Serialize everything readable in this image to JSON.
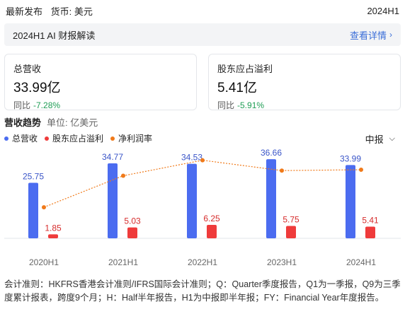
{
  "header": {
    "release": "最新发布",
    "currency": "货币: 美元",
    "period": "2024H1"
  },
  "ai_bar": {
    "title": "2024H1 AI 财报解读",
    "link": "查看详情"
  },
  "cards": [
    {
      "label": "总营收",
      "value": "33.99亿",
      "yoy_label": "同比",
      "yoy": "-7.28%"
    },
    {
      "label": "股东应占溢利",
      "value": "5.41亿",
      "yoy_label": "同比",
      "yoy": "-5.91%"
    }
  ],
  "section": {
    "title": "营收趋势",
    "unit": "单位: 亿美元"
  },
  "legend": [
    {
      "name": "总营收",
      "color": "#4b6cf0"
    },
    {
      "name": "股东应占溢利",
      "color": "#ef3b3b"
    },
    {
      "name": "净利润率",
      "color": "#f07a1a"
    }
  ],
  "period_select": "中报",
  "chart_data": {
    "type": "bar",
    "categories": [
      "2020H1",
      "2021H1",
      "2022H1",
      "2023H1",
      "2024H1"
    ],
    "series": [
      {
        "name": "总营收",
        "values": [
          25.75,
          34.77,
          34.53,
          36.66,
          33.99
        ],
        "color": "#4b6cf0"
      },
      {
        "name": "股东应占溢利",
        "values": [
          1.85,
          5.03,
          6.25,
          5.75,
          5.41
        ],
        "color": "#ef3b3b"
      },
      {
        "name": "净利润率",
        "type": "line",
        "values": [
          7.2,
          14.5,
          18.1,
          15.7,
          15.9
        ],
        "color": "#f07a1a"
      }
    ],
    "ylim": [
      0,
      40
    ],
    "y2lim": [
      0,
      20
    ]
  },
  "footnote": "会计准则：HKFRS香港会计准则/IFRS国际会计准则；Q：Quarter季度报告，Q1为一季报，Q9为三季度累计报表，跨度9个月；H：Half半年报告，H1为中报即半年报；FY：Financial Year年度报告。"
}
